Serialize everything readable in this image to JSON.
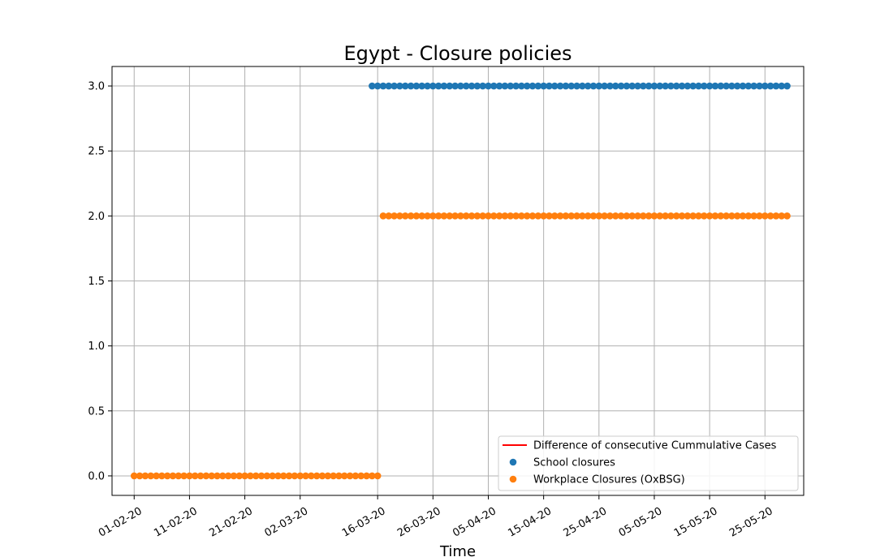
{
  "chart_data": {
    "type": "scatter",
    "title": "Egypt - Closure policies",
    "xlabel": "Time",
    "ylabel": "",
    "ylim": [
      -0.15,
      3.15
    ],
    "xlim": [
      "2020-01-28",
      "2020-06-01"
    ],
    "grid": true,
    "legend_position": "bottom-right",
    "x_ticks": [
      {
        "date": "2020-02-01",
        "label": "01-02-20"
      },
      {
        "date": "2020-02-11",
        "label": "11-02-20"
      },
      {
        "date": "2020-02-21",
        "label": "21-02-20"
      },
      {
        "date": "2020-03-02",
        "label": "02-03-20"
      },
      {
        "date": "2020-03-16",
        "label": "16-03-20"
      },
      {
        "date": "2020-03-26",
        "label": "26-03-20"
      },
      {
        "date": "2020-04-05",
        "label": "05-04-20"
      },
      {
        "date": "2020-04-15",
        "label": "15-04-20"
      },
      {
        "date": "2020-04-25",
        "label": "25-04-20"
      },
      {
        "date": "2020-05-05",
        "label": "05-05-20"
      },
      {
        "date": "2020-05-15",
        "label": "15-05-20"
      },
      {
        "date": "2020-05-25",
        "label": "25-05-20"
      }
    ],
    "y_ticks": [
      {
        "value": 0.0,
        "label": "0.0"
      },
      {
        "value": 0.5,
        "label": "0.5"
      },
      {
        "value": 1.0,
        "label": "1.0"
      },
      {
        "value": 1.5,
        "label": "1.5"
      },
      {
        "value": 2.0,
        "label": "2.0"
      },
      {
        "value": 2.5,
        "label": "2.5"
      },
      {
        "value": 3.0,
        "label": "3.0"
      }
    ],
    "series": [
      {
        "name": "Difference of consecutive Cummulative Cases",
        "kind": "line",
        "color": "#ff0000",
        "points": []
      },
      {
        "name": "School closures",
        "kind": "scatter",
        "color": "#1f77b4",
        "segments": [
          {
            "start": "2020-03-15",
            "end": "2020-05-29",
            "value": 3
          }
        ]
      },
      {
        "name": "Workplace Closures (OxBSG)",
        "kind": "scatter",
        "color": "#ff7f0e",
        "segments": [
          {
            "start": "2020-02-01",
            "end": "2020-03-16",
            "value": 0
          },
          {
            "start": "2020-03-17",
            "end": "2020-05-29",
            "value": 2
          }
        ]
      }
    ]
  }
}
